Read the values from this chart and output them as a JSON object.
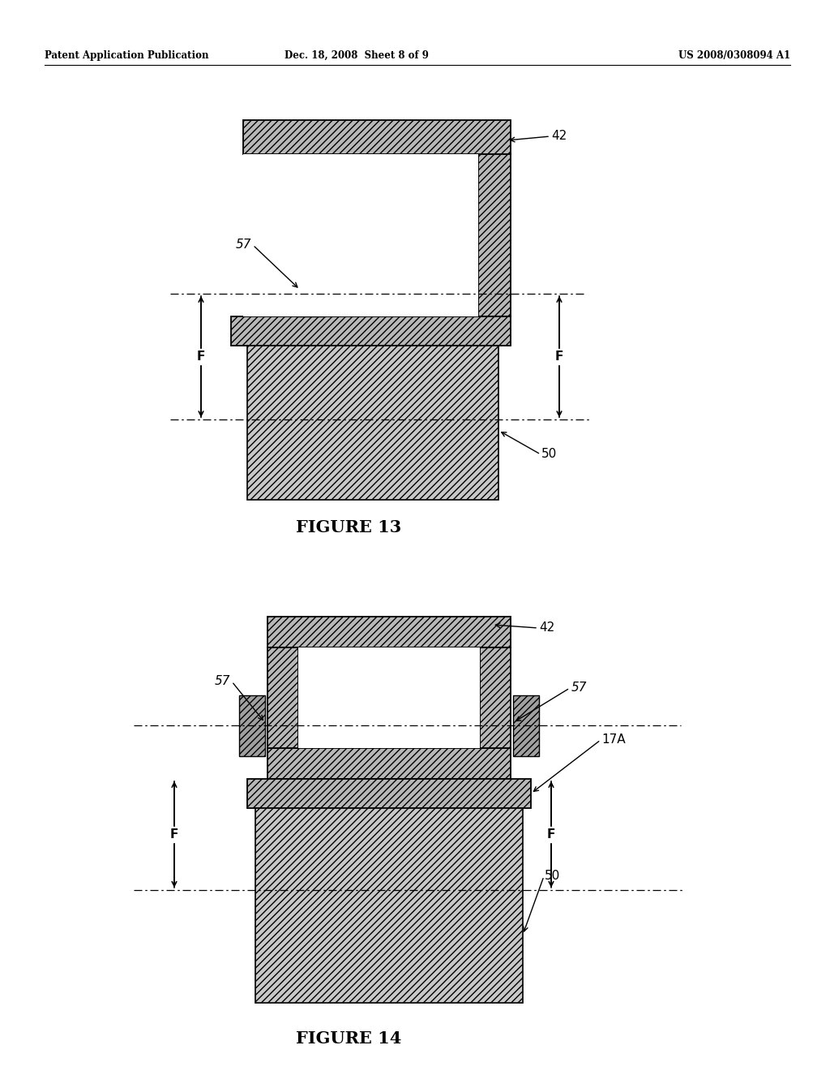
{
  "header_left": "Patent Application Publication",
  "header_mid": "Dec. 18, 2008  Sheet 8 of 9",
  "header_right": "US 2008/0308094 A1",
  "fig13_caption": "FIGURE 13",
  "fig14_caption": "FIGURE 14",
  "bg_color": "#ffffff"
}
